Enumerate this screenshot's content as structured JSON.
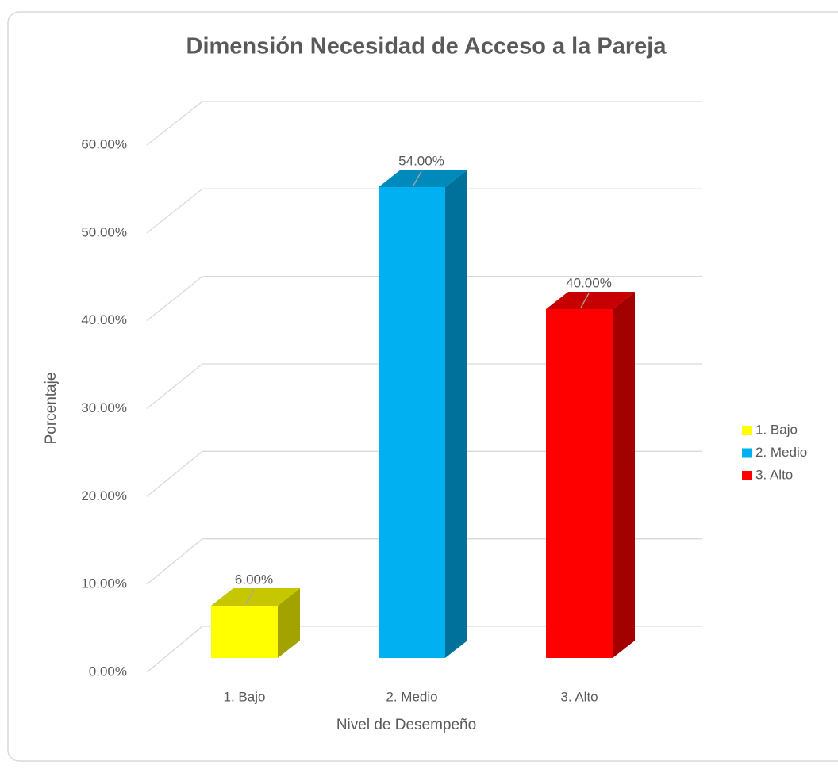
{
  "chart_data": {
    "type": "bar3d",
    "title": "Dimensión  Necesidad de Acceso a la Pareja",
    "x_label": "Nivel de Desempeño",
    "y_label": "Porcentaje",
    "categories": [
      "1. Bajo",
      "2. Medio",
      "3. Alto"
    ],
    "values": [
      6,
      54,
      40
    ],
    "value_labels": [
      "6.00%",
      "54.00%",
      "40.00%"
    ],
    "colors": [
      "#ffff00",
      "#00b0f0",
      "#ff0000"
    ],
    "ylim": [
      0,
      60
    ],
    "yticks": [
      {
        "value": 0,
        "label": "0.00%"
      },
      {
        "value": 10,
        "label": "10.00%"
      },
      {
        "value": 20,
        "label": "20.00%"
      },
      {
        "value": 30,
        "label": "30.00%"
      },
      {
        "value": 40,
        "label": "40.00%"
      },
      {
        "value": 50,
        "label": "50.00%"
      },
      {
        "value": 60,
        "label": "60.00%"
      }
    ],
    "grid": true,
    "legend": "right"
  }
}
